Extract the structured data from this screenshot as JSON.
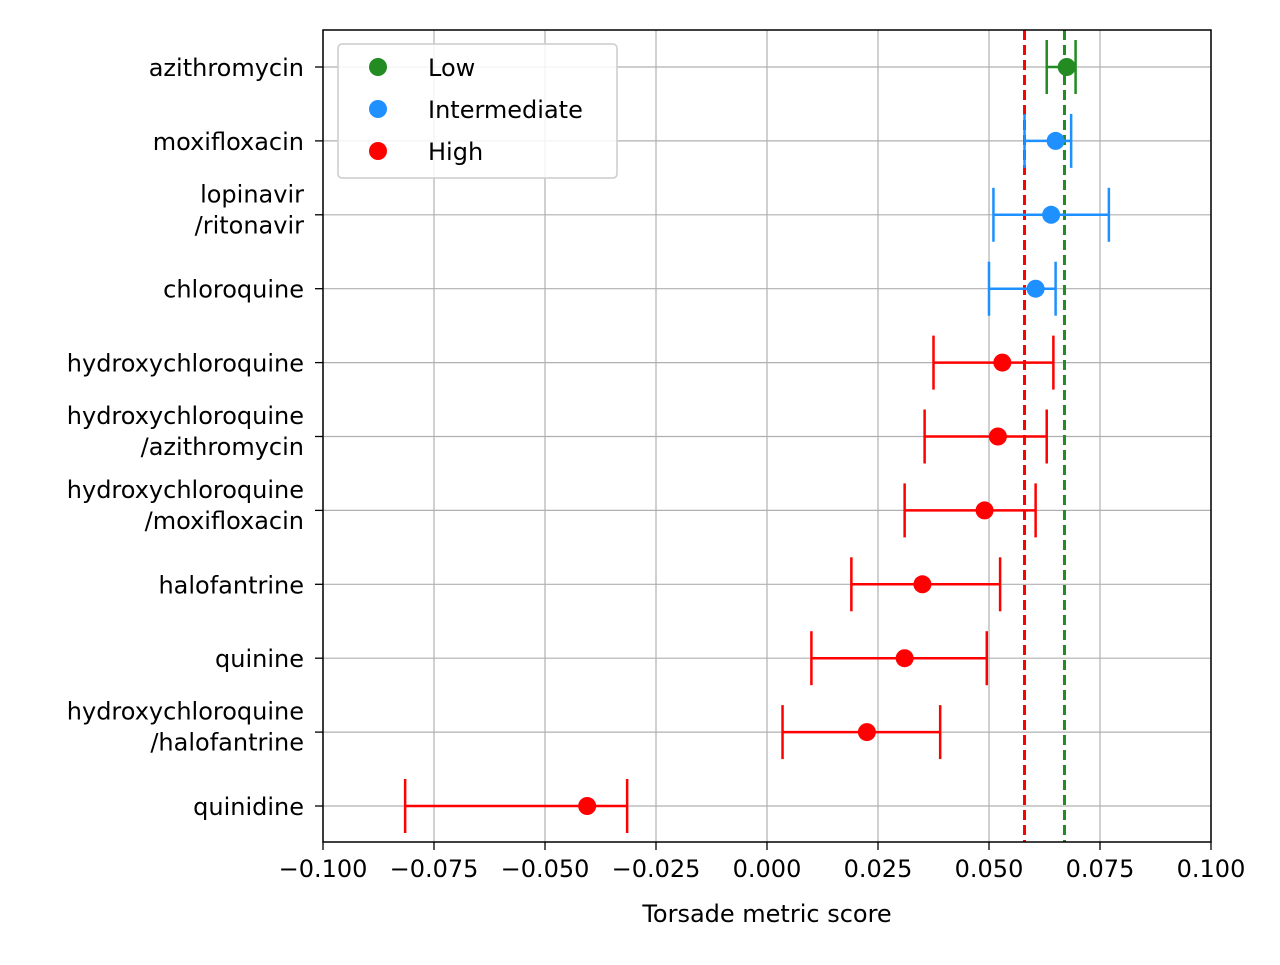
{
  "chart_data": {
    "type": "scatter",
    "subtype": "forest-plot-with-error-bars",
    "title": "",
    "xlabel": "Torsade metric score",
    "ylabel": "",
    "xlim": [
      -0.1,
      0.1
    ],
    "x_ticks": [
      -0.1,
      -0.075,
      -0.05,
      -0.025,
      0.0,
      0.025,
      0.05,
      0.075,
      0.1
    ],
    "x_tick_labels": [
      "−0.100",
      "−0.075",
      "−0.050",
      "−0.025",
      "0.000",
      "0.025",
      "0.050",
      "0.075",
      "0.100"
    ],
    "grid": true,
    "legend_position": "top-left",
    "series": [
      {
        "name": "Low",
        "color": "#228B22"
      },
      {
        "name": "Intermediate",
        "color": "#1E90FF"
      },
      {
        "name": "High",
        "color": "#FF0000"
      }
    ],
    "categories": [
      {
        "label": [
          "azithromycin"
        ],
        "risk": "Low",
        "x": 0.0675,
        "err_low": 0.063,
        "err_high": 0.0695
      },
      {
        "label": [
          "moxifloxacin"
        ],
        "risk": "Intermediate",
        "x": 0.065,
        "err_low": 0.058,
        "err_high": 0.0685
      },
      {
        "label": [
          "lopinavir",
          "/ritonavir"
        ],
        "risk": "Intermediate",
        "x": 0.064,
        "err_low": 0.051,
        "err_high": 0.077
      },
      {
        "label": [
          "chloroquine"
        ],
        "risk": "Intermediate",
        "x": 0.0605,
        "err_low": 0.05,
        "err_high": 0.065
      },
      {
        "label": [
          "hydroxychloroquine"
        ],
        "risk": "High",
        "x": 0.053,
        "err_low": 0.0375,
        "err_high": 0.0645
      },
      {
        "label": [
          "hydroxychloroquine",
          "/azithromycin"
        ],
        "risk": "High",
        "x": 0.052,
        "err_low": 0.0355,
        "err_high": 0.063
      },
      {
        "label": [
          "hydroxychloroquine",
          "/moxifloxacin"
        ],
        "risk": "High",
        "x": 0.049,
        "err_low": 0.031,
        "err_high": 0.0605
      },
      {
        "label": [
          "halofantrine"
        ],
        "risk": "High",
        "x": 0.035,
        "err_low": 0.019,
        "err_high": 0.0525
      },
      {
        "label": [
          "quinine"
        ],
        "risk": "High",
        "x": 0.031,
        "err_low": 0.01,
        "err_high": 0.0495
      },
      {
        "label": [
          "hydroxychloroquine",
          "/halofantrine"
        ],
        "risk": "High",
        "x": 0.0225,
        "err_low": 0.0035,
        "err_high": 0.039
      },
      {
        "label": [
          "quinidine"
        ],
        "risk": "High",
        "x": -0.0405,
        "err_low": -0.0815,
        "err_high": -0.0315
      }
    ],
    "reference_lines": [
      {
        "x": 0.058,
        "color": "#FF0000",
        "style": "dashed"
      },
      {
        "x": 0.067,
        "color": "#228B22",
        "style": "dashed"
      }
    ]
  }
}
